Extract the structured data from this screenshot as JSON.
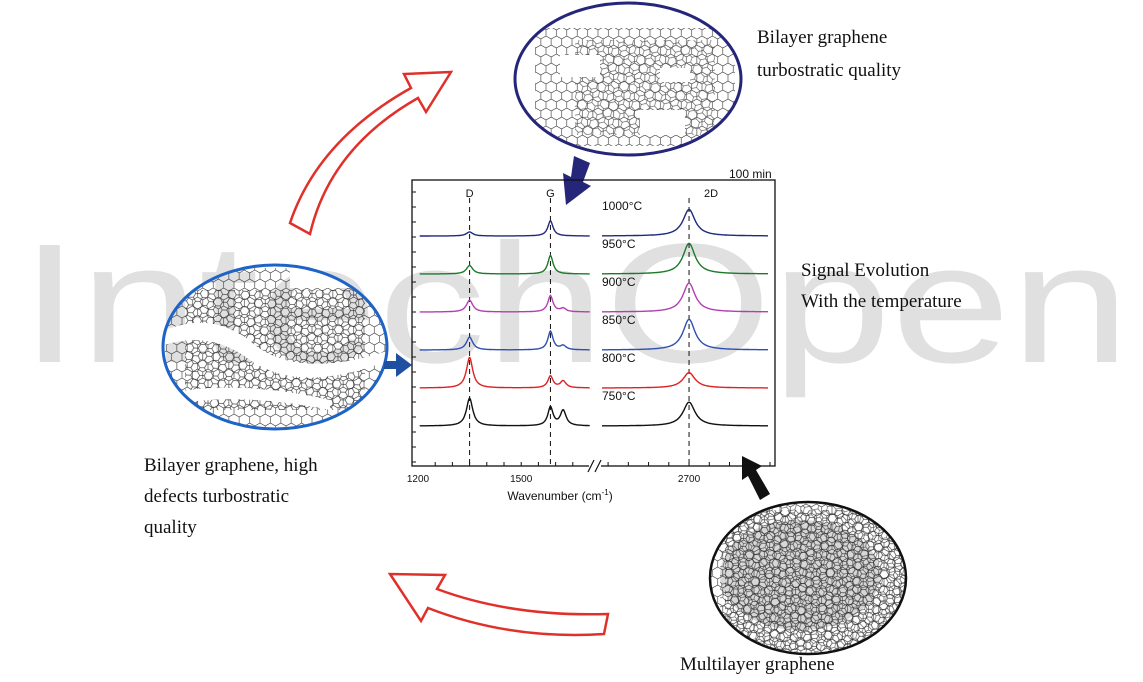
{
  "watermark": "IntechOpen",
  "captions": {
    "top_line1": "Bilayer graphene",
    "top_line2": "turbostratic quality",
    "right_line1": "Signal Evolution",
    "right_line2": "With the temperature",
    "left_line1": "Bilayer graphene, high",
    "left_line2": "defects turbostratic",
    "left_line3": "quality",
    "bottom": "Multilayer graphene"
  },
  "chart_data": {
    "type": "line",
    "corner_label": "100 min",
    "xlabel": "Wavenumber (cm-1)",
    "xlabel_main": "Wavenumber (cm",
    "xlabel_sup": "-1",
    "xlabel_close": ")",
    "x_ticks": [
      "1200",
      "1500",
      "2700"
    ],
    "x_segments": [
      [
        1200,
        1700
      ],
      [
        2480,
        2900
      ]
    ],
    "peak_labels": [
      "D",
      "G",
      "2D"
    ],
    "peak_positions": [
      1350,
      1585,
      2700
    ],
    "series": [
      {
        "name": "1000°C",
        "color": "#1f2a7a",
        "D": 0.12,
        "G": 0.45,
        "D2": 0.78,
        "DG": 0.0
      },
      {
        "name": "950°C",
        "color": "#1a7a2a",
        "D": 0.25,
        "G": 0.55,
        "D2": 0.9,
        "DG": 0.0
      },
      {
        "name": "900°C",
        "color": "#b040b0",
        "D": 0.35,
        "G": 0.48,
        "D2": 0.85,
        "DG": 0.1
      },
      {
        "name": "850°C",
        "color": "#2f4fb0",
        "D": 0.38,
        "G": 0.55,
        "D2": 0.9,
        "DG": 0.12
      },
      {
        "name": "800°C",
        "color": "#e02020",
        "D": 0.9,
        "G": 0.35,
        "D2": 0.45,
        "DG": 0.2
      },
      {
        "name": "750°C",
        "color": "#111111",
        "D": 0.82,
        "G": 0.55,
        "D2": 0.7,
        "DG": 0.45
      }
    ]
  },
  "colors": {
    "blue_oval": "#1e63c6",
    "navy_oval": "#25257a",
    "red_arrow": "#e0302a",
    "blue_arrow": "#1e4fa0",
    "watermark": "#dcdcdc"
  }
}
